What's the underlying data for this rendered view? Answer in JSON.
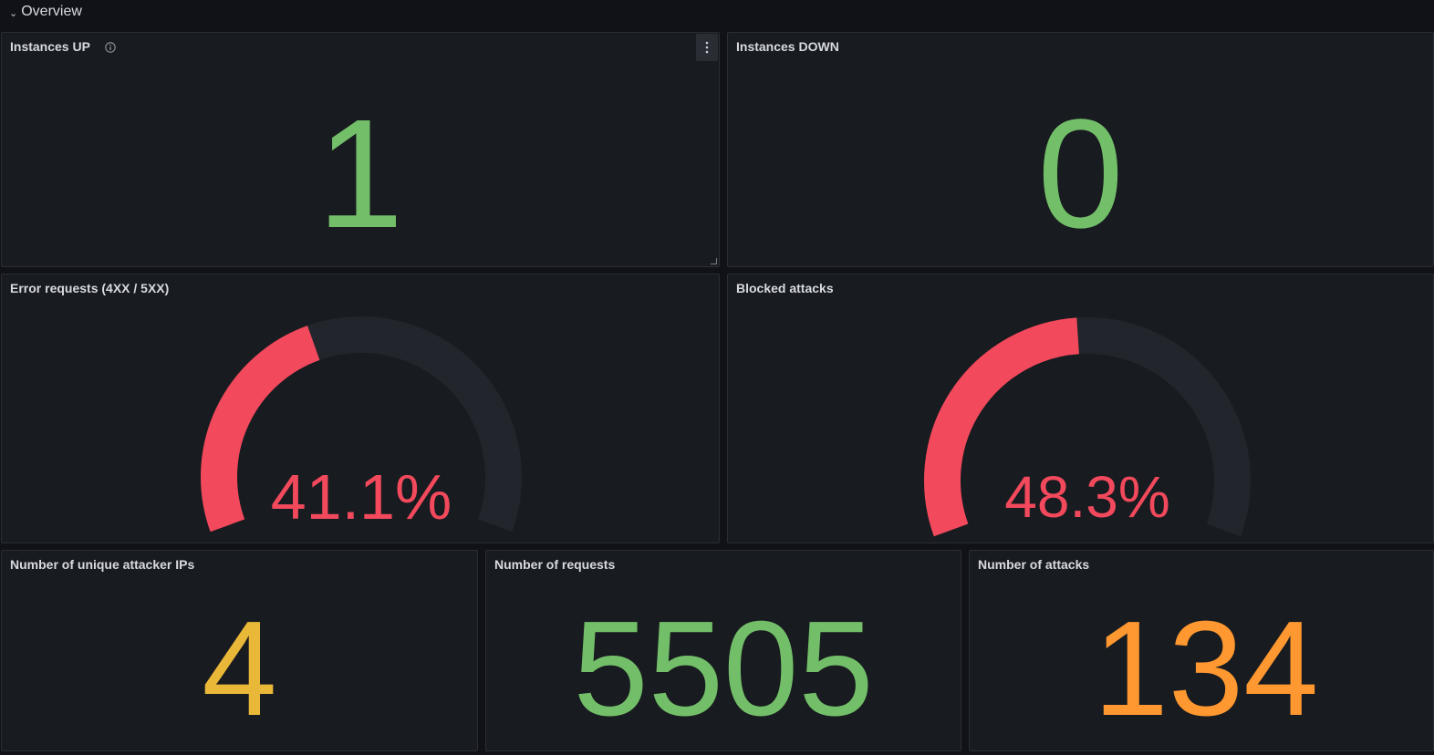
{
  "row": {
    "title": "Overview",
    "chevron": "chevron-down-icon"
  },
  "panels": {
    "instances_up": {
      "title": "Instances UP",
      "value": "1",
      "color": "#73bf69"
    },
    "instances_down": {
      "title": "Instances DOWN",
      "value": "0",
      "color": "#73bf69"
    },
    "error_requests": {
      "title": "Error requests (4XX / 5XX)",
      "value": "41.1%",
      "percent": 41.1,
      "color": "#f2495c",
      "track_color": "#22252b"
    },
    "blocked_attacks": {
      "title": "Blocked attacks",
      "value": "48.3%",
      "percent": 48.3,
      "color": "#f2495c",
      "track_color": "#22252b"
    },
    "unique_ips": {
      "title": "Number of unique attacker IPs",
      "value": "4",
      "color": "#eab839"
    },
    "requests": {
      "title": "Number of requests",
      "value": "5505",
      "color": "#73bf69"
    },
    "attacks": {
      "title": "Number of attacks",
      "value": "134",
      "color": "#ff9830"
    }
  }
}
